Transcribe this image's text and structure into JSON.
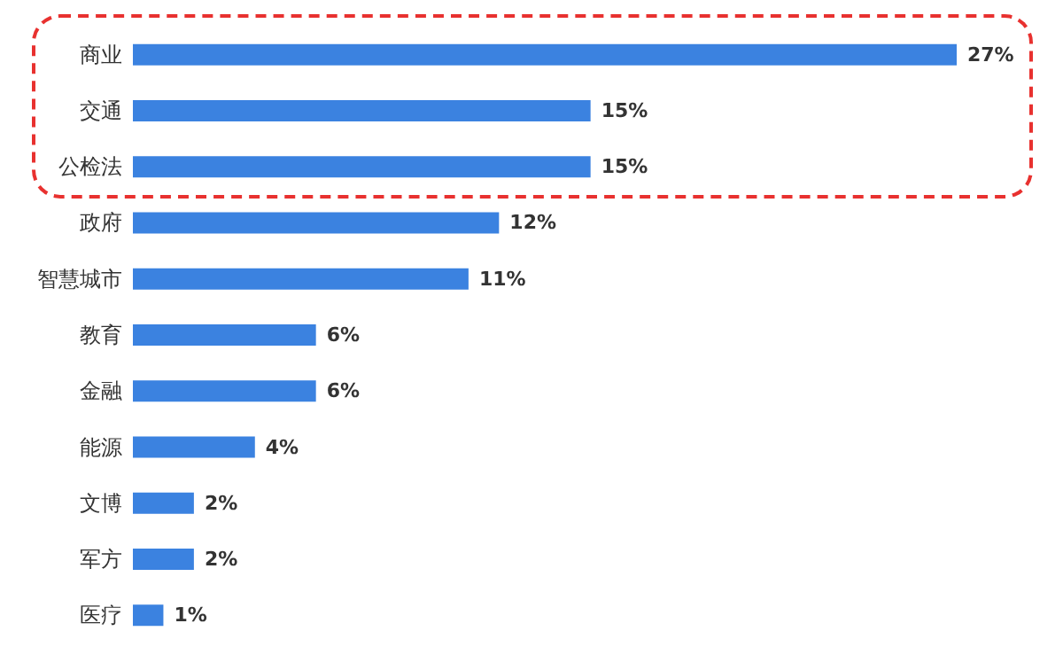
{
  "chart_data": {
    "type": "bar",
    "orientation": "horizontal",
    "categories": [
      "商业",
      "交通",
      "公检法",
      "政府",
      "智慧城市",
      "教育",
      "金融",
      "能源",
      "文博",
      "军方",
      "医疗"
    ],
    "values": [
      27,
      15,
      15,
      12,
      11,
      6,
      6,
      4,
      2,
      2,
      1
    ],
    "value_labels": [
      "27%",
      "15%",
      "15%",
      "12%",
      "11%",
      "6%",
      "6%",
      "4%",
      "2%",
      "2%",
      "1%"
    ],
    "color": "#3b82e0"
  }
}
